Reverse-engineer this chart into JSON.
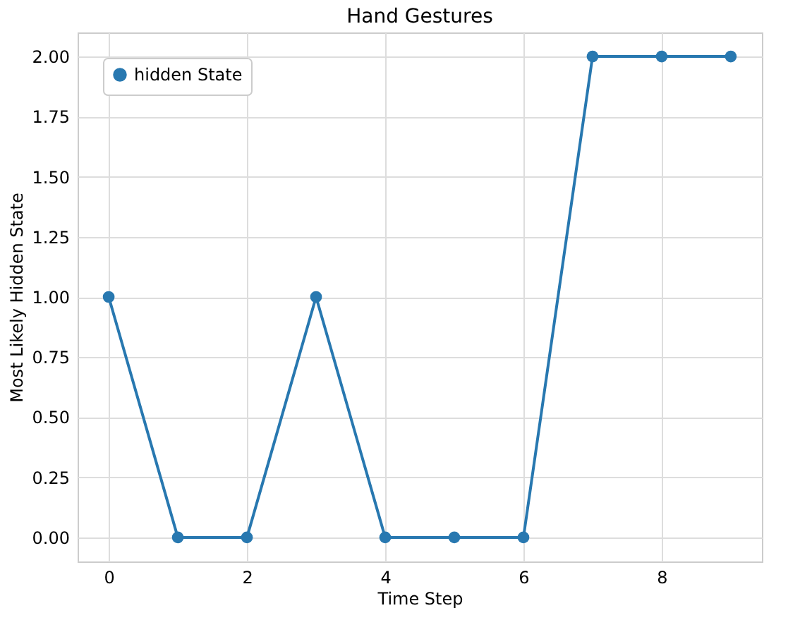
{
  "chart_data": {
    "type": "line",
    "title": "Hand Gestures",
    "xlabel": "Time Step",
    "ylabel": "Most Likely Hidden State",
    "x": [
      0,
      1,
      2,
      3,
      4,
      5,
      6,
      7,
      8,
      9
    ],
    "series": [
      {
        "name": "hidden State",
        "color": "#2878b0",
        "values": [
          1,
          0,
          0,
          1,
          0,
          0,
          0,
          2,
          2,
          2
        ]
      }
    ],
    "xlim": [
      -0.45,
      9.45
    ],
    "xticks": [
      0,
      2,
      4,
      6,
      8
    ],
    "ylim": [
      -0.1,
      2.1
    ],
    "yticks": [
      {
        "value": 0,
        "label": "0.00"
      },
      {
        "value": 0.25,
        "label": "0.25"
      },
      {
        "value": 0.5,
        "label": "0.50"
      },
      {
        "value": 0.75,
        "label": "0.75"
      },
      {
        "value": 1,
        "label": "1.00"
      },
      {
        "value": 1.25,
        "label": "1.25"
      },
      {
        "value": 1.5,
        "label": "1.50"
      },
      {
        "value": 1.75,
        "label": "1.75"
      },
      {
        "value": 2,
        "label": "2.00"
      }
    ],
    "grid": true,
    "legend": "top left",
    "marker": "circle",
    "line_style": "solid"
  }
}
